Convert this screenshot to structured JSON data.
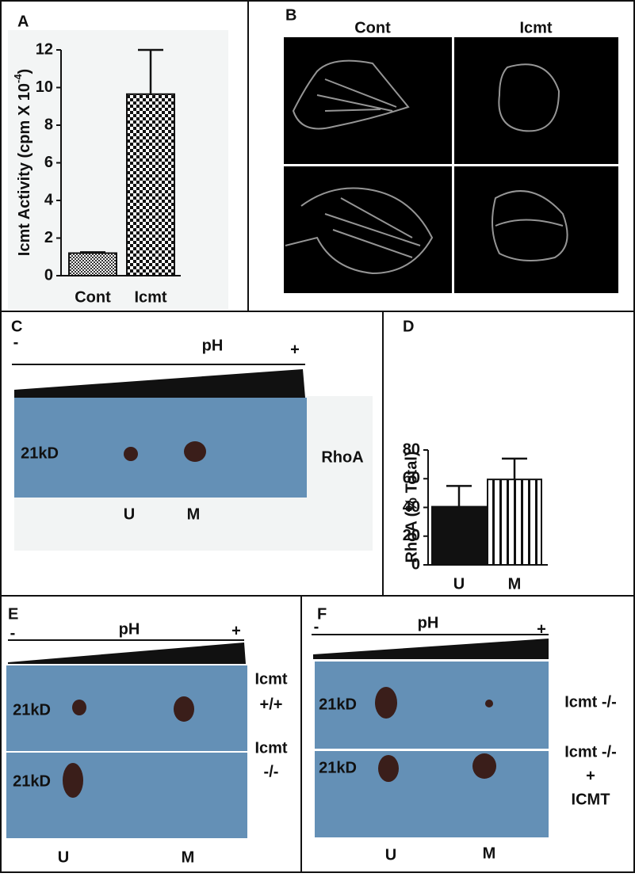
{
  "panel_labels": [
    "A",
    "B",
    "C",
    "D",
    "E",
    "F"
  ],
  "chart_data": [
    {
      "type": "bar",
      "ylabel": "Icmt Activity (cpm X 10",
      "ylabel_superscript": "-4",
      "ylabel_suffix": ")",
      "categories": [
        "Cont",
        "Icmt"
      ],
      "values": [
        1.2,
        9.65
      ],
      "errors": [
        0.05,
        2.35
      ],
      "ylim": [
        0,
        12
      ],
      "yticks": [
        0,
        2,
        4,
        6,
        8,
        10,
        12
      ]
    },
    {
      "type": "bar",
      "ylabel": "RhoA (% Total)",
      "categories": [
        "U",
        "M"
      ],
      "values": [
        40.5,
        59.5
      ],
      "errors": [
        14.5,
        14.5
      ],
      "ylim": [
        0,
        80
      ],
      "yticks": [
        0,
        20,
        40,
        60,
        80
      ]
    }
  ],
  "panel_b": {
    "columns": [
      "Cont",
      "Icmt"
    ]
  },
  "panel_c": {
    "axis_label": "pH",
    "minus": "-",
    "plus": "+",
    "marker": "21kD",
    "protein": "RhoA",
    "spots": [
      "U",
      "M"
    ]
  },
  "panel_e": {
    "axis_label": "pH",
    "minus": "-",
    "plus": "+",
    "rows": [
      {
        "marker": "21kD",
        "label": [
          "Icmt",
          "+/+"
        ]
      },
      {
        "marker": "21kD",
        "label": [
          "Icmt",
          "-/-"
        ]
      }
    ],
    "spots": [
      "U",
      "M"
    ]
  },
  "panel_f": {
    "axis_label": "pH",
    "minus": "-",
    "plus": "+",
    "rows": [
      {
        "marker": "21kD",
        "label": [
          "Icmt -/-"
        ]
      },
      {
        "marker": "21kD",
        "label": [
          "Icmt -/-",
          "+",
          "ICMT"
        ]
      }
    ],
    "spots": [
      "U",
      "M"
    ]
  }
}
